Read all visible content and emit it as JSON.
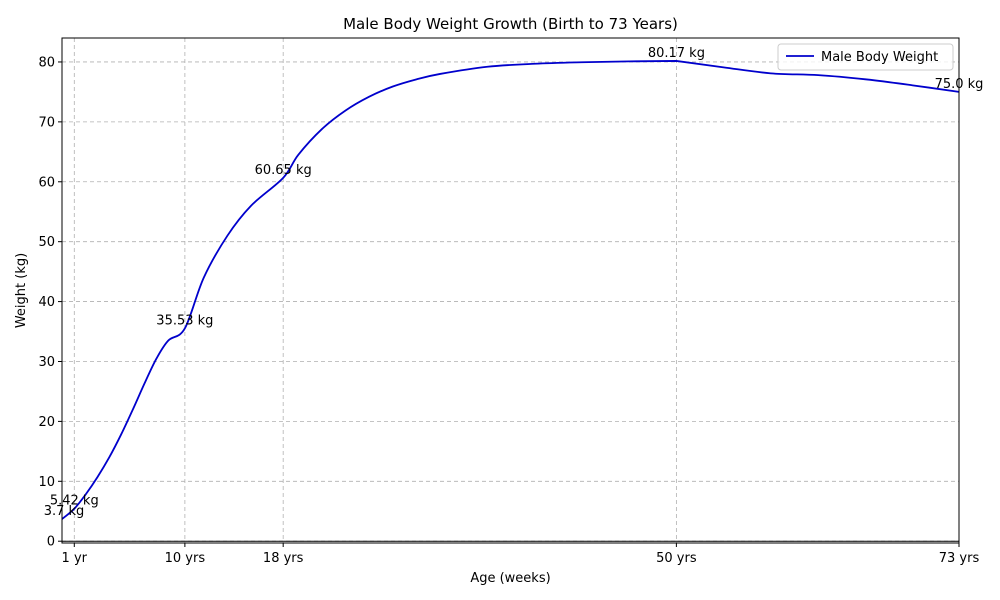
{
  "chart_data": {
    "type": "line",
    "title": "Male Body Weight Growth (Birth to 73 Years)",
    "xlabel": "Age (weeks)",
    "ylabel": "Weight (kg)",
    "xlim": [
      0,
      3796
    ],
    "ylim": [
      -0.3,
      84
    ],
    "grid": true,
    "legend": "top-right",
    "line_color": "#0000cc",
    "x_ticks": [
      {
        "x": 52,
        "label": "1 yr"
      },
      {
        "x": 520,
        "label": "10 yrs"
      },
      {
        "x": 936,
        "label": "18 yrs"
      },
      {
        "x": 2600,
        "label": "50 yrs"
      },
      {
        "x": 3796,
        "label": "73 yrs"
      }
    ],
    "y_ticks": [
      0,
      10,
      20,
      30,
      40,
      50,
      60,
      70,
      80
    ],
    "series": [
      {
        "name": "Male Body Weight",
        "x": [
          0,
          52,
          100,
          150,
          200,
          250,
          300,
          350,
          400,
          450,
          520,
          600,
          700,
          800,
          936,
          1000,
          1100,
          1200,
          1300,
          1400,
          1500,
          1600,
          1800,
          2000,
          2200,
          2400,
          2600,
          2800,
          3000,
          3200,
          3400,
          3600,
          3796
        ],
        "y": [
          3.7,
          5.42,
          7.8,
          10.7,
          14.0,
          17.8,
          22.0,
          26.4,
          30.5,
          33.5,
          35.53,
          44.0,
          51.0,
          56.0,
          60.65,
          64.5,
          68.8,
          71.9,
          74.2,
          75.9,
          77.1,
          78.0,
          79.2,
          79.7,
          79.95,
          80.1,
          80.17,
          79.1,
          78.1,
          77.8,
          77.1,
          76.1,
          75.0
        ]
      }
    ],
    "annotations": [
      {
        "x": 0,
        "y": 3.7,
        "text": "3.7 kg"
      },
      {
        "x": 52,
        "y": 5.42,
        "text": "5.42 kg"
      },
      {
        "x": 520,
        "y": 35.53,
        "text": "35.53 kg"
      },
      {
        "x": 936,
        "y": 60.65,
        "text": "60.65 kg"
      },
      {
        "x": 2600,
        "y": 80.17,
        "text": "80.17 kg"
      },
      {
        "x": 3796,
        "y": 75.0,
        "text": "75.0 kg"
      }
    ]
  }
}
